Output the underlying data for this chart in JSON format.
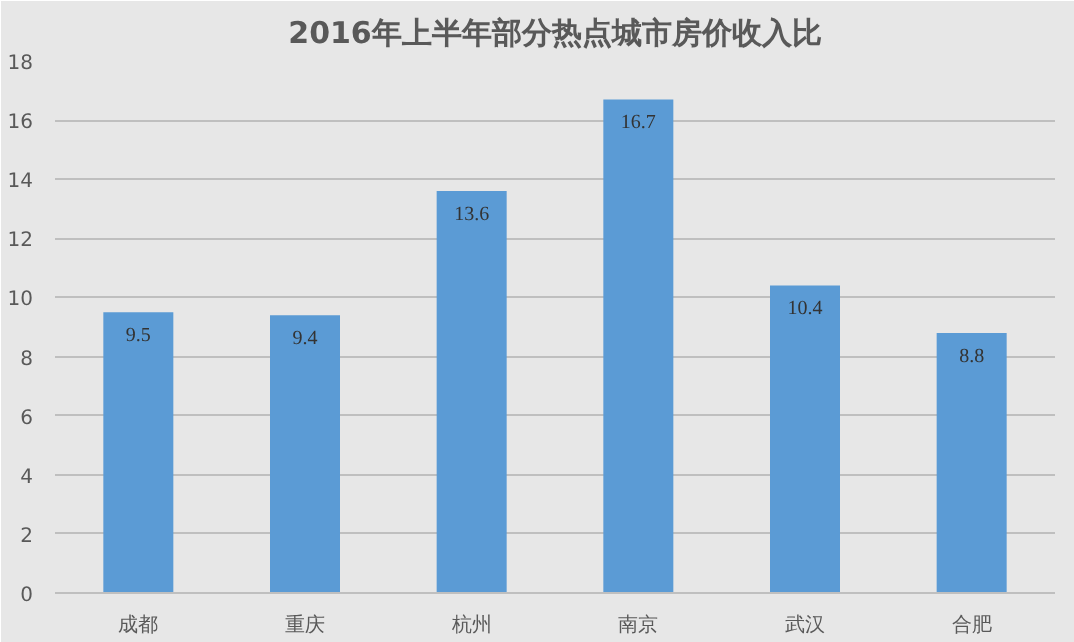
{
  "chart_data": {
    "type": "bar",
    "title": "2016年上半年部分热点城市房价收入比",
    "categories": [
      "成都",
      "重庆",
      "杭州",
      "南京",
      "武汉",
      "合肥"
    ],
    "values": [
      9.5,
      9.4,
      13.6,
      16.7,
      10.4,
      8.8
    ],
    "color": "#5b9bd5",
    "ylim": [
      0,
      18
    ],
    "yticks": [
      0,
      2,
      4,
      6,
      8,
      10,
      12,
      14,
      16,
      18
    ],
    "grid": "y",
    "data_labels": true
  }
}
